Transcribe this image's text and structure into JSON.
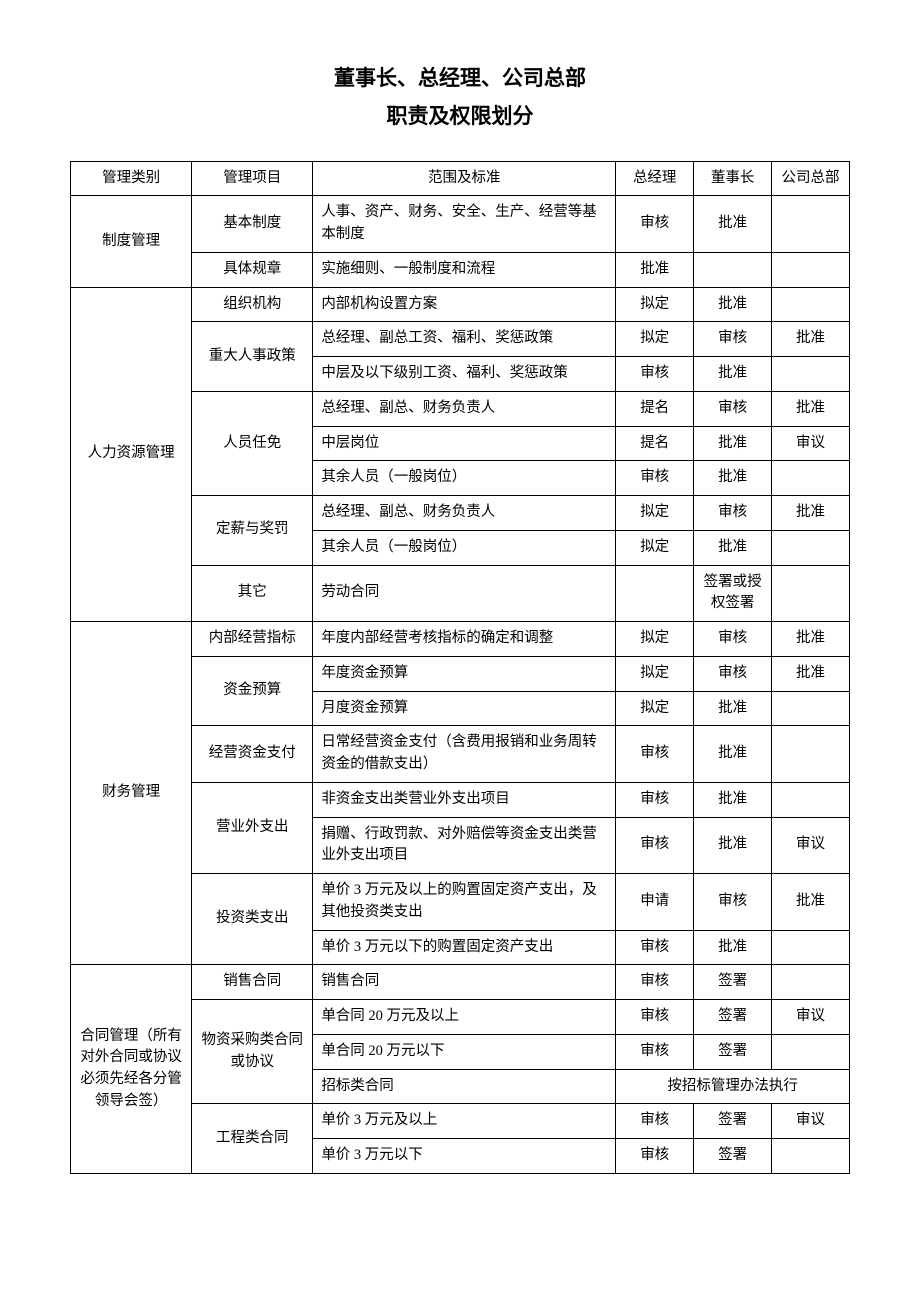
{
  "title": {
    "line1": "董事长、总经理、公司总部",
    "line2": "职责及权限划分"
  },
  "headers": {
    "category": "管理类别",
    "item": "管理项目",
    "scope": "范围及标准",
    "gm": "总经理",
    "chairman": "董事长",
    "hq": "公司总部"
  },
  "groups": [
    {
      "category": "制度管理",
      "rows": [
        {
          "item": "基本制度",
          "item_rowspan": 1,
          "scope": "人事、资产、财务、安全、生产、经营等基本制度",
          "gm": "审核",
          "chairman": "批准",
          "hq": ""
        },
        {
          "item": "具体规章",
          "item_rowspan": 1,
          "scope": "实施细则、一般制度和流程",
          "gm": "批准",
          "chairman": "",
          "hq": ""
        }
      ]
    },
    {
      "category": "人力资源管理",
      "rows": [
        {
          "item": "组织机构",
          "item_rowspan": 1,
          "scope": "内部机构设置方案",
          "gm": "拟定",
          "chairman": "批准",
          "hq": ""
        },
        {
          "item": "重大人事政策",
          "item_rowspan": 2,
          "scope": "总经理、副总工资、福利、奖惩政策",
          "gm": "拟定",
          "chairman": "审核",
          "hq": "批准"
        },
        {
          "scope": "中层及以下级别工资、福利、奖惩政策",
          "gm": "审核",
          "chairman": "批准",
          "hq": ""
        },
        {
          "item": "人员任免",
          "item_rowspan": 3,
          "scope": "总经理、副总、财务负责人",
          "gm": "提名",
          "chairman": "审核",
          "hq": "批准"
        },
        {
          "scope": "中层岗位",
          "gm": "提名",
          "chairman": "批准",
          "hq": "审议"
        },
        {
          "scope": "其余人员（一般岗位）",
          "gm": "审核",
          "chairman": "批准",
          "hq": ""
        },
        {
          "item": "定薪与奖罚",
          "item_rowspan": 2,
          "scope": "总经理、副总、财务负责人",
          "gm": "拟定",
          "chairman": "审核",
          "hq": "批准"
        },
        {
          "scope": "其余人员（一般岗位）",
          "gm": "拟定",
          "chairman": "批准",
          "hq": ""
        },
        {
          "item": "其它",
          "item_rowspan": 1,
          "scope": "劳动合同",
          "gm": "",
          "chairman": "签署或授权签署",
          "hq": ""
        }
      ]
    },
    {
      "category": "财务管理",
      "rows": [
        {
          "item": "内部经营指标",
          "item_rowspan": 1,
          "scope": "年度内部经营考核指标的确定和调整",
          "gm": "拟定",
          "chairman": "审核",
          "hq": "批准"
        },
        {
          "item": "资金预算",
          "item_rowspan": 2,
          "scope": "年度资金预算",
          "gm": "拟定",
          "chairman": "审核",
          "hq": "批准"
        },
        {
          "scope": "月度资金预算",
          "gm": "拟定",
          "chairman": "批准",
          "hq": ""
        },
        {
          "item": "经营资金支付",
          "item_rowspan": 1,
          "scope": "日常经营资金支付（含费用报销和业务周转资金的借款支出）",
          "gm": "审核",
          "chairman": "批准",
          "hq": ""
        },
        {
          "item": "营业外支出",
          "item_rowspan": 2,
          "scope": "非资金支出类营业外支出项目",
          "gm": "审核",
          "chairman": "批准",
          "hq": ""
        },
        {
          "scope": "捐赠、行政罚款、对外赔偿等资金支出类营业外支出项目",
          "gm": "审核",
          "chairman": "批准",
          "hq": "审议"
        },
        {
          "item": "投资类支出",
          "item_rowspan": 2,
          "scope": "单价 3 万元及以上的购置固定资产支出，及其他投资类支出",
          "gm": "申请",
          "chairman": "审核",
          "hq": "批准"
        },
        {
          "scope": "单价 3 万元以下的购置固定资产支出",
          "gm": "审核",
          "chairman": "批准",
          "hq": ""
        }
      ]
    },
    {
      "category": "合同管理（所有对外合同或协议必须先经各分管领导会签）",
      "rows": [
        {
          "item": "销售合同",
          "item_rowspan": 1,
          "scope": "销售合同",
          "gm": "审核",
          "chairman": "签署",
          "hq": ""
        },
        {
          "item": "物资采购类合同或协议",
          "item_rowspan": 3,
          "scope": "单合同 20 万元及以上",
          "gm": "审核",
          "chairman": "签署",
          "hq": "审议"
        },
        {
          "scope": "单合同 20 万元以下",
          "gm": "审核",
          "chairman": "签署",
          "hq": ""
        },
        {
          "scope": "招标类合同",
          "merged": true,
          "merged_text": "按招标管理办法执行"
        },
        {
          "item": "工程类合同",
          "item_rowspan": 2,
          "scope": "单价 3 万元及以上",
          "gm": "审核",
          "chairman": "签署",
          "hq": "审议"
        },
        {
          "scope": "单价 3 万元以下",
          "gm": "审核",
          "chairman": "签署",
          "hq": ""
        }
      ]
    }
  ]
}
